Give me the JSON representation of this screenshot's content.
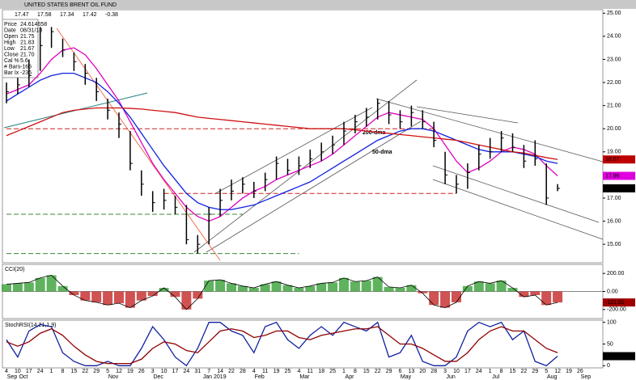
{
  "header": {
    "title": "UNITED STATES BRENT OIL FUND",
    "quotes": [
      "17.47",
      "17.58",
      "17.34",
      "17.42",
      "-0.38"
    ]
  },
  "info_box": [
    {
      "label": "Price",
      "value": "24.614658"
    },
    {
      "label": "Date",
      "value": "08/31/18"
    },
    {
      "label": "Open",
      "value": "21.75"
    },
    {
      "label": "High",
      "value": "21.83"
    },
    {
      "label": "Low",
      "value": "21.67"
    },
    {
      "label": "Close",
      "value": "21.70"
    },
    {
      "label": "Cal %",
      "value": "5.6"
    },
    {
      "label": "# Bars",
      "value": "-166"
    },
    {
      "label": "Bar Ix",
      "value": "-236"
    }
  ],
  "chart_data": [
    {
      "type": "ohlc",
      "annotations": [
        "200-dma",
        "50-dma"
      ],
      "categories": [
        "4",
        "10",
        "17",
        "24",
        "1",
        "8",
        "15",
        "22",
        "29",
        "5",
        "12",
        "19",
        "26",
        "3",
        "10",
        "17",
        "24",
        "31",
        "7",
        "14",
        "22",
        "28",
        "4",
        "11",
        "19",
        "25",
        "4",
        "11",
        "18",
        "25",
        "1",
        "8",
        "15",
        "22",
        "29",
        "6",
        "13",
        "20",
        "28",
        "3",
        "10",
        "17",
        "24",
        "1",
        "8",
        "15",
        "22",
        "29",
        "5",
        "12",
        "19",
        "26"
      ],
      "month_labels": [
        "Sep",
        "Oct",
        null,
        null,
        null,
        null,
        null,
        null,
        null,
        "Nov",
        null,
        null,
        null,
        "Dec",
        null,
        null,
        null,
        null,
        "Jan 2019",
        null,
        null,
        null,
        "Feb",
        null,
        null,
        null,
        "Mar",
        null,
        null,
        null,
        "Apr",
        null,
        null,
        null,
        null,
        "May",
        null,
        null,
        null,
        "Jun",
        null,
        null,
        null,
        "Jul",
        null,
        null,
        null,
        null,
        "Aug",
        null,
        null,
        "Sep"
      ],
      "high": [
        22.0,
        22.2,
        23.0,
        24.4,
        24.4,
        23.9,
        23.3,
        22.8,
        22.2,
        21.3,
        20.7,
        19.9,
        18.2,
        17.3,
        17.4,
        17.1,
        16.7,
        15.4,
        16.6,
        17.4,
        17.8,
        17.9,
        17.7,
        18.1,
        18.8,
        18.7,
        18.8,
        19.1,
        19.4,
        19.7,
        20.3,
        20.6,
        20.9,
        21.3,
        21.2,
        20.8,
        21.0,
        20.8,
        20.3,
        19.0,
        18.0,
        18.5,
        19.3,
        19.6,
        19.9,
        19.8,
        19.3,
        19.5,
        18.5,
        17.6,
        null,
        null
      ],
      "low": [
        21.1,
        21.5,
        21.8,
        22.5,
        23.5,
        23.1,
        22.5,
        21.9,
        21.2,
        20.4,
        19.6,
        18.2,
        17.1,
        16.4,
        16.5,
        16.3,
        15.0,
        14.6,
        15.0,
        16.2,
        16.9,
        17.2,
        17.0,
        17.3,
        17.8,
        18.0,
        18.0,
        18.3,
        18.6,
        18.9,
        19.3,
        19.8,
        20.1,
        20.4,
        20.2,
        20.0,
        20.1,
        20.0,
        19.2,
        17.6,
        17.2,
        17.4,
        18.2,
        18.7,
        19.0,
        19.0,
        18.3,
        18.4,
        16.7,
        17.3,
        null,
        null
      ],
      "close": [
        21.6,
        21.9,
        22.3,
        23.6,
        24.2,
        23.4,
        22.9,
        22.4,
        21.6,
        20.8,
        20.2,
        18.5,
        17.6,
        16.8,
        16.9,
        16.6,
        15.2,
        15.0,
        16.3,
        16.9,
        17.3,
        17.6,
        17.3,
        17.8,
        18.5,
        18.2,
        18.4,
        18.7,
        19.0,
        19.3,
        19.9,
        20.3,
        20.5,
        21.1,
        20.6,
        20.3,
        20.7,
        20.3,
        19.5,
        18.0,
        17.6,
        18.1,
        18.9,
        19.0,
        19.6,
        19.2,
        18.6,
        18.7,
        17.0,
        17.42,
        null,
        null
      ],
      "series": [
        {
          "color": "#e000c0",
          "values": [
            21.5,
            21.7,
            21.9,
            22.4,
            23.0,
            23.4,
            23.5,
            23.2,
            22.6,
            21.9,
            21.2,
            20.3,
            19.4,
            18.5,
            17.8,
            17.2,
            16.6,
            16.2,
            16.0,
            16.2,
            16.6,
            17.0,
            17.3,
            17.5,
            17.8,
            18.0,
            18.2,
            18.4,
            18.6,
            18.9,
            19.3,
            19.7,
            20.1,
            20.5,
            20.7,
            20.6,
            20.5,
            20.4,
            20.0,
            19.3,
            18.6,
            18.1,
            18.3,
            18.6,
            19.0,
            19.2,
            19.1,
            18.9,
            18.4,
            17.96,
            null,
            null
          ]
        },
        {
          "color": "#1020e0",
          "values": [
            21.2,
            21.5,
            21.8,
            22.1,
            22.3,
            22.4,
            22.4,
            22.2,
            22.0,
            21.6,
            21.1,
            20.5,
            19.8,
            19.1,
            18.4,
            17.8,
            17.2,
            16.8,
            16.6,
            16.5,
            16.5,
            16.6,
            16.7,
            16.9,
            17.1,
            17.3,
            17.5,
            17.7,
            18.0,
            18.3,
            18.6,
            18.9,
            19.2,
            19.5,
            19.7,
            19.9,
            20.0,
            20.0,
            19.9,
            19.7,
            19.5,
            19.3,
            19.1,
            19.0,
            19.0,
            19.0,
            18.9,
            18.8,
            18.6,
            18.5,
            null,
            null
          ]
        },
        {
          "color": "#d01010",
          "values": [
            19.7,
            19.9,
            20.1,
            20.3,
            20.5,
            20.7,
            20.8,
            20.85,
            20.9,
            20.9,
            20.9,
            20.88,
            20.85,
            20.8,
            20.75,
            20.7,
            20.6,
            20.5,
            20.45,
            20.4,
            20.35,
            20.3,
            20.25,
            20.2,
            20.15,
            20.1,
            20.05,
            20.0,
            20.0,
            20.0,
            20.0,
            19.95,
            19.9,
            19.85,
            19.8,
            19.75,
            19.7,
            19.65,
            19.6,
            19.55,
            19.5,
            19.4,
            19.3,
            19.2,
            19.1,
            19.0,
            18.95,
            18.85,
            18.75,
            18.67,
            null,
            null
          ]
        }
      ],
      "levels": [
        {
          "value": 20.0,
          "color": "#d02020"
        },
        {
          "value": 17.2,
          "color": "#d02020"
        },
        {
          "value": 16.3,
          "color": "#3a8a3a"
        },
        {
          "value": 14.6,
          "color": "#3a8a3a"
        }
      ],
      "ylim": [
        14.2,
        25.15
      ],
      "yticks": [
        {
          "value": 15,
          "label": "15.00"
        },
        {
          "value": 16,
          "label": "16.00"
        },
        {
          "value": 17,
          "label": "17.00"
        },
        {
          "value": 18,
          "label": "18.00"
        },
        {
          "value": 19,
          "label": "19.00"
        },
        {
          "value": 20,
          "label": "20.00"
        },
        {
          "value": 21,
          "label": "21.00"
        },
        {
          "value": 22,
          "label": "22.00"
        },
        {
          "value": 23,
          "label": "23.00"
        },
        {
          "value": 24,
          "label": "24.00"
        },
        {
          "value": 25,
          "label": "25.00"
        }
      ],
      "tags": [
        {
          "value": 18.67,
          "color": "#c00000"
        },
        {
          "value": 17.96,
          "color": "#e000e0"
        },
        {
          "value": 17.42,
          "color": "#000000"
        }
      ]
    },
    {
      "type": "cci",
      "title": "CCI(20)",
      "values": [
        80,
        90,
        100,
        150,
        180,
        60,
        -40,
        -100,
        -120,
        -150,
        -130,
        -180,
        -100,
        -50,
        40,
        -60,
        -200,
        -80,
        120,
        130,
        90,
        60,
        40,
        80,
        110,
        70,
        40,
        60,
        90,
        100,
        150,
        110,
        120,
        160,
        50,
        40,
        70,
        -20,
        -150,
        -180,
        -120,
        60,
        110,
        90,
        120,
        40,
        -60,
        -40,
        -150,
        -121.81,
        null,
        null
      ],
      "ylim": [
        -300,
        300
      ],
      "yticks": [
        {
          "value": 200,
          "label": "200.00"
        },
        {
          "value": 0,
          "label": "0.00"
        },
        {
          "value": -200,
          "label": "-200.00"
        }
      ],
      "tags": [
        {
          "value": -121.81,
          "color": "#a00000"
        }
      ]
    },
    {
      "type": "stoch",
      "title": "StochRSI(14,21,1,9)",
      "series": [
        {
          "color": "#1020a0",
          "values": [
            60,
            20,
            80,
            95,
            90,
            30,
            10,
            0,
            0,
            10,
            0,
            0,
            40,
            90,
            60,
            20,
            0,
            40,
            100,
            100,
            80,
            70,
            30,
            90,
            100,
            60,
            40,
            70,
            90,
            70,
            100,
            90,
            80,
            100,
            20,
            30,
            70,
            10,
            0,
            0,
            20,
            80,
            100,
            90,
            100,
            60,
            80,
            10,
            0,
            21.99,
            null,
            null
          ]
        },
        {
          "color": "#900000",
          "values": [
            55,
            45,
            55,
            75,
            85,
            70,
            45,
            25,
            10,
            5,
            5,
            5,
            15,
            40,
            55,
            50,
            35,
            30,
            55,
            80,
            85,
            80,
            65,
            70,
            80,
            80,
            65,
            60,
            70,
            75,
            80,
            85,
            85,
            90,
            70,
            50,
            50,
            40,
            25,
            10,
            10,
            30,
            60,
            80,
            90,
            80,
            80,
            60,
            40,
            30,
            null,
            null
          ]
        }
      ],
      "ylim": [
        -5,
        105
      ],
      "yticks": [
        100,
        50,
        0
      ],
      "tags": [
        {
          "value": 21.99,
          "color": "#000000"
        }
      ]
    }
  ]
}
